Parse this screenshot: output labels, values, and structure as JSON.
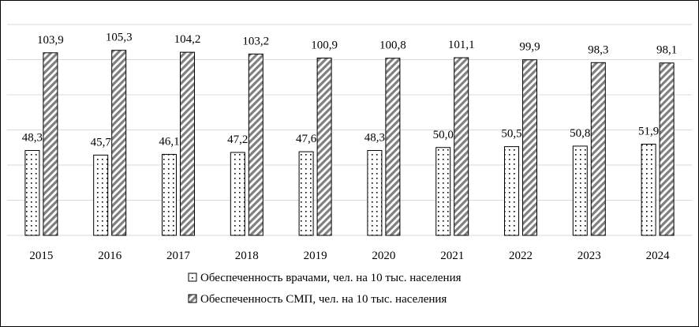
{
  "chart_data": {
    "type": "bar",
    "categories": [
      "2015",
      "2016",
      "2017",
      "2018",
      "2019",
      "2020",
      "2021",
      "2022",
      "2023",
      "2024"
    ],
    "series": [
      {
        "name": "Обеспеченность врачами, чел. на 10 тыс. населения",
        "values": [
          48.3,
          45.7,
          46.1,
          47.2,
          47.6,
          48.3,
          50.0,
          50.5,
          50.8,
          51.9
        ],
        "labels": [
          "48,3",
          "45,7",
          "46,1",
          "47,2",
          "47,6",
          "48,3",
          "50,0",
          "50,5",
          "50,8",
          "51,9"
        ],
        "pattern": "dots",
        "color": "#000000"
      },
      {
        "name": "Обеспеченность СМП, чел. на 10 тыс. населения",
        "values": [
          103.9,
          105.3,
          104.2,
          103.2,
          100.9,
          100.8,
          101.1,
          99.9,
          98.3,
          98.1
        ],
        "labels": [
          "103,9",
          "105,3",
          "104,2",
          "103,2",
          "100,9",
          "100,8",
          "101,1",
          "99,9",
          "98,3",
          "98,1"
        ],
        "pattern": "diagonal-stripes",
        "color": "#808080"
      }
    ],
    "ylim": [
      0,
      120
    ],
    "gridlines": true,
    "legend_position": "bottom"
  }
}
